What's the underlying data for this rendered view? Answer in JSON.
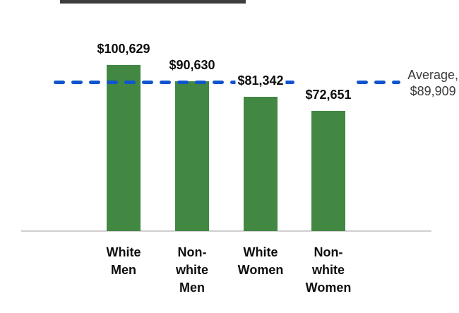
{
  "chart_data": {
    "type": "bar",
    "title": "",
    "categories": [
      "White Men",
      "Non-white Men",
      "White Women",
      "Non-white Women"
    ],
    "category_label_text": [
      "White\nMen",
      "Non-\nwhite\nMen",
      "White\nWomen",
      "Non-\nwhite\nWomen"
    ],
    "values": [
      100629,
      90630,
      81342,
      72651
    ],
    "data_labels": [
      "$100,629",
      "$90,630",
      "$81,342",
      "$72,651"
    ],
    "average": {
      "value": 89909,
      "label_text": "Average,\n$89,909"
    },
    "ylim": [
      0,
      100629
    ],
    "grid": false,
    "legend_position": "none",
    "bar_color": "#428843",
    "average_line_color": "#1155cc",
    "axis_color": "#cfcfcf",
    "label_color": "#0d0d0d",
    "average_label_color": "#3a3a3a"
  },
  "decorations": {
    "header_remnant_color": "#3d3d3d"
  }
}
